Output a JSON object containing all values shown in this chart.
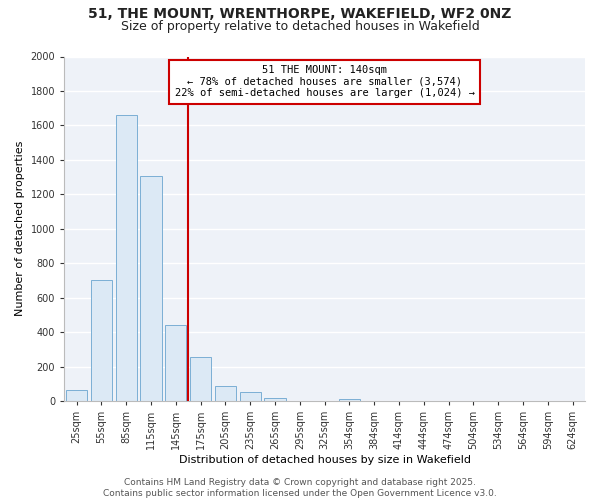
{
  "title_line1": "51, THE MOUNT, WRENTHORPE, WAKEFIELD, WF2 0NZ",
  "title_line2": "Size of property relative to detached houses in Wakefield",
  "bar_labels": [
    "25sqm",
    "55sqm",
    "85sqm",
    "115sqm",
    "145sqm",
    "175sqm",
    "205sqm",
    "235sqm",
    "265sqm",
    "295sqm",
    "325sqm",
    "354sqm",
    "384sqm",
    "414sqm",
    "444sqm",
    "474sqm",
    "504sqm",
    "534sqm",
    "564sqm",
    "594sqm",
    "624sqm"
  ],
  "bar_values": [
    65,
    700,
    1660,
    1305,
    440,
    255,
    90,
    50,
    20,
    0,
    0,
    10,
    0,
    0,
    0,
    0,
    0,
    0,
    0,
    0,
    0
  ],
  "bar_color": "#dce9f5",
  "bar_edge_color": "#7bafd4",
  "vline_x": 4.5,
  "vline_color": "#cc0000",
  "annotation_title": "51 THE MOUNT: 140sqm",
  "annotation_line1": "← 78% of detached houses are smaller (3,574)",
  "annotation_line2": "22% of semi-detached houses are larger (1,024) →",
  "annotation_box_color": "#cc0000",
  "xlabel": "Distribution of detached houses by size in Wakefield",
  "ylabel": "Number of detached properties",
  "ylim": [
    0,
    2000
  ],
  "yticks": [
    0,
    200,
    400,
    600,
    800,
    1000,
    1200,
    1400,
    1600,
    1800,
    2000
  ],
  "footer_line1": "Contains HM Land Registry data © Crown copyright and database right 2025.",
  "footer_line2": "Contains public sector information licensed under the Open Government Licence v3.0.",
  "background_color": "#ffffff",
  "plot_bg_color": "#eef2f8",
  "grid_color": "#ffffff",
  "title_fontsize": 10,
  "subtitle_fontsize": 9,
  "axis_label_fontsize": 8,
  "tick_fontsize": 7,
  "footer_fontsize": 6.5
}
